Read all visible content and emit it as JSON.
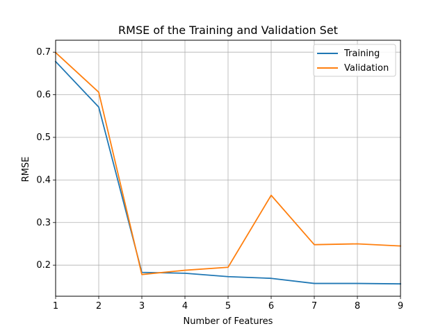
{
  "chart_data": {
    "type": "line",
    "title": "RMSE of the Training and Validation Set",
    "xlabel": "Number of Features",
    "ylabel": "RMSE",
    "x": [
      1,
      2,
      3,
      4,
      5,
      6,
      7,
      8,
      9
    ],
    "xlim": [
      1,
      9
    ],
    "ylim": [
      0.127,
      0.728
    ],
    "xticks": [
      1,
      2,
      3,
      4,
      5,
      6,
      7,
      8,
      9
    ],
    "yticks": [
      0.2,
      0.3,
      0.4,
      0.5,
      0.6,
      0.7
    ],
    "xtick_labels": [
      "1",
      "2",
      "3",
      "4",
      "5",
      "6",
      "7",
      "8",
      "9"
    ],
    "ytick_labels": [
      "0.2",
      "0.3",
      "0.4",
      "0.5",
      "0.6",
      "0.7"
    ],
    "grid": true,
    "legend_position": "top-right",
    "series": [
      {
        "name": "Training",
        "color": "#1f77b4",
        "values": [
          0.678,
          0.571,
          0.183,
          0.181,
          0.173,
          0.169,
          0.157,
          0.157,
          0.156
        ]
      },
      {
        "name": "Validation",
        "color": "#ff7f0e",
        "values": [
          0.699,
          0.606,
          0.178,
          0.188,
          0.195,
          0.364,
          0.248,
          0.25,
          0.245
        ]
      }
    ]
  }
}
